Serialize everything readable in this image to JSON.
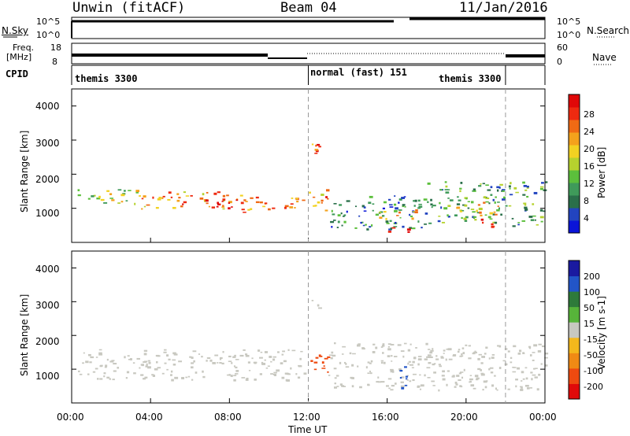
{
  "header": {
    "station": "Unwin (fitACF)",
    "beam": "Beam 04",
    "date": "11/Jan/2016"
  },
  "panels": {
    "nsky": {
      "label": "N.Sky",
      "ticks": [
        "10^5",
        "10^0"
      ],
      "right_label": "N.Search",
      "right_ticks": [
        "10^5",
        "10^0"
      ]
    },
    "freq": {
      "label_line1": "Freq.",
      "label_line2": "[MHz]",
      "ticks": [
        "18",
        "8"
      ],
      "right_label": "Nave",
      "right_ticks": [
        "60",
        "0"
      ]
    },
    "cpid": {
      "label": "CPID",
      "segments": [
        "themis 3300",
        "normal (fast) 151",
        "themis 3300"
      ]
    }
  },
  "x_axis": {
    "label": "Time UT",
    "ticks": [
      "00:00",
      "04:00",
      "08:00",
      "12:00",
      "16:00",
      "20:00",
      "00:00"
    ]
  },
  "power": {
    "ylabel": "Slant Range [km]",
    "yticks": [
      "4000",
      "3000",
      "2000",
      "1000"
    ],
    "cbar_label": "Power [dB]",
    "cbar_ticks": [
      "28",
      "24",
      "20",
      "16",
      "12",
      "8",
      "4"
    ],
    "colors": [
      "#0a14d8",
      "#2244c0",
      "#2a6f4a",
      "#3f9a5a",
      "#5cbf3c",
      "#b6d22e",
      "#f2d222",
      "#f4a21c",
      "#f06a14",
      "#ee2a10",
      "#e00808"
    ]
  },
  "velocity": {
    "ylabel": "Slant Range [km]",
    "yticks": [
      "4000",
      "3000",
      "2000",
      "1000"
    ],
    "cbar_label": "Velocity [m s-1]",
    "cbar_ticks": [
      "200",
      "100",
      "50",
      "15",
      "-15",
      "-50",
      "-100",
      "-200"
    ],
    "colors": [
      "#1a1aa0",
      "#2255c8",
      "#2e7a3a",
      "#57b43a",
      "#c8c8c0",
      "#f4b81c",
      "#f08a14",
      "#ee4a10",
      "#e00a0a"
    ]
  },
  "chart_data": {
    "type": "heatmap",
    "x_range": [
      "00:00",
      "24:00"
    ],
    "y_range_km": [
      0,
      4500
    ],
    "mode_switch_times": [
      "12:00",
      "22:00"
    ],
    "power_regions": [
      {
        "t0": 0.3,
        "t1": 3.5,
        "r0": 1100,
        "r1": 1600,
        "db": 16
      },
      {
        "t0": 3.5,
        "t1": 8.0,
        "r0": 1000,
        "r1": 1500,
        "db": 20
      },
      {
        "t0": 5.5,
        "t1": 8.5,
        "r0": 1000,
        "r1": 1300,
        "db": 26
      },
      {
        "t0": 8.5,
        "t1": 11.8,
        "r0": 900,
        "r1": 1400,
        "db": 22
      },
      {
        "t0": 12.0,
        "t1": 12.6,
        "r0": 2200,
        "r1": 2900,
        "db": 24
      },
      {
        "t0": 12.0,
        "t1": 13.0,
        "r0": 900,
        "r1": 1600,
        "db": 22
      },
      {
        "t0": 13.0,
        "t1": 18.0,
        "r0": 400,
        "r1": 1400,
        "db": 8
      },
      {
        "t0": 15.5,
        "t1": 17.5,
        "r0": 700,
        "r1": 1000,
        "db": 20
      },
      {
        "t0": 16.0,
        "t1": 17.2,
        "r0": 300,
        "r1": 500,
        "db": 26
      },
      {
        "t0": 18.0,
        "t1": 24.0,
        "r0": 500,
        "r1": 1800,
        "db": 10
      },
      {
        "t0": 19.5,
        "t1": 22.0,
        "r0": 800,
        "r1": 1200,
        "db": 18
      },
      {
        "t0": 20.5,
        "t1": 21.5,
        "r0": 400,
        "r1": 700,
        "db": 22
      }
    ],
    "velocity_regions": [
      {
        "t0": 0.3,
        "t1": 11.8,
        "r0": 700,
        "r1": 1600,
        "v": 0
      },
      {
        "t0": 12.0,
        "t1": 13.0,
        "r0": 900,
        "r1": 1600,
        "v": -200
      },
      {
        "t0": 12.0,
        "t1": 12.6,
        "r0": 2800,
        "r1": 3100,
        "v": 0
      },
      {
        "t0": 13.0,
        "t1": 24.0,
        "r0": 400,
        "r1": 1800,
        "v": 0
      },
      {
        "t0": 16.5,
        "t1": 17.0,
        "r0": 400,
        "r1": 1200,
        "v": 150
      }
    ]
  }
}
